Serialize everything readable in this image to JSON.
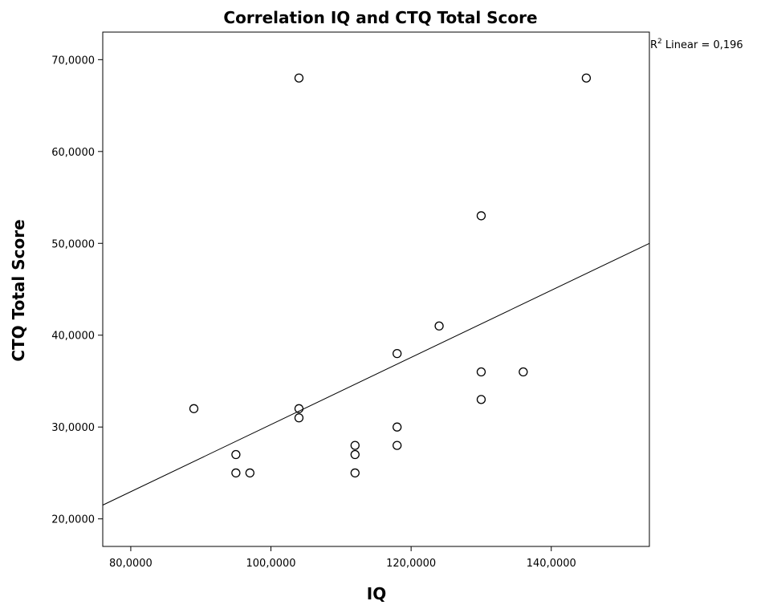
{
  "chart_data": {
    "type": "scatter",
    "title": "Correlation IQ and CTQ Total Score",
    "xlabel": "IQ",
    "ylabel": "CTQ Total Score",
    "xlim": [
      76,
      154
    ],
    "ylim": [
      17,
      73
    ],
    "x_ticks": [
      80,
      100,
      120,
      140
    ],
    "x_tick_labels": [
      "80,0000",
      "100,0000",
      "120,0000",
      "140,0000"
    ],
    "y_ticks": [
      20,
      30,
      40,
      50,
      60,
      70
    ],
    "y_tick_labels": [
      "20,0000",
      "30,0000",
      "40,0000",
      "50,0000",
      "60,0000",
      "70,0000"
    ],
    "points": [
      {
        "x": 89,
        "y": 32
      },
      {
        "x": 95,
        "y": 27
      },
      {
        "x": 95,
        "y": 25
      },
      {
        "x": 97,
        "y": 25
      },
      {
        "x": 104,
        "y": 68
      },
      {
        "x": 104,
        "y": 32
      },
      {
        "x": 104,
        "y": 31
      },
      {
        "x": 112,
        "y": 28
      },
      {
        "x": 112,
        "y": 27
      },
      {
        "x": 112,
        "y": 25
      },
      {
        "x": 118,
        "y": 38
      },
      {
        "x": 118,
        "y": 30
      },
      {
        "x": 118,
        "y": 28
      },
      {
        "x": 124,
        "y": 41
      },
      {
        "x": 130,
        "y": 53
      },
      {
        "x": 130,
        "y": 36
      },
      {
        "x": 130,
        "y": 33
      },
      {
        "x": 136,
        "y": 36
      },
      {
        "x": 145,
        "y": 68
      }
    ],
    "fit_line": {
      "type": "linear",
      "x": [
        76,
        154
      ],
      "y": [
        21.5,
        50.0
      ]
    },
    "annotation": {
      "r2_prefix": "R",
      "r2_sup": "2",
      "r2_suffix": " Linear = 0,196"
    },
    "grid": false,
    "legend": "none"
  }
}
